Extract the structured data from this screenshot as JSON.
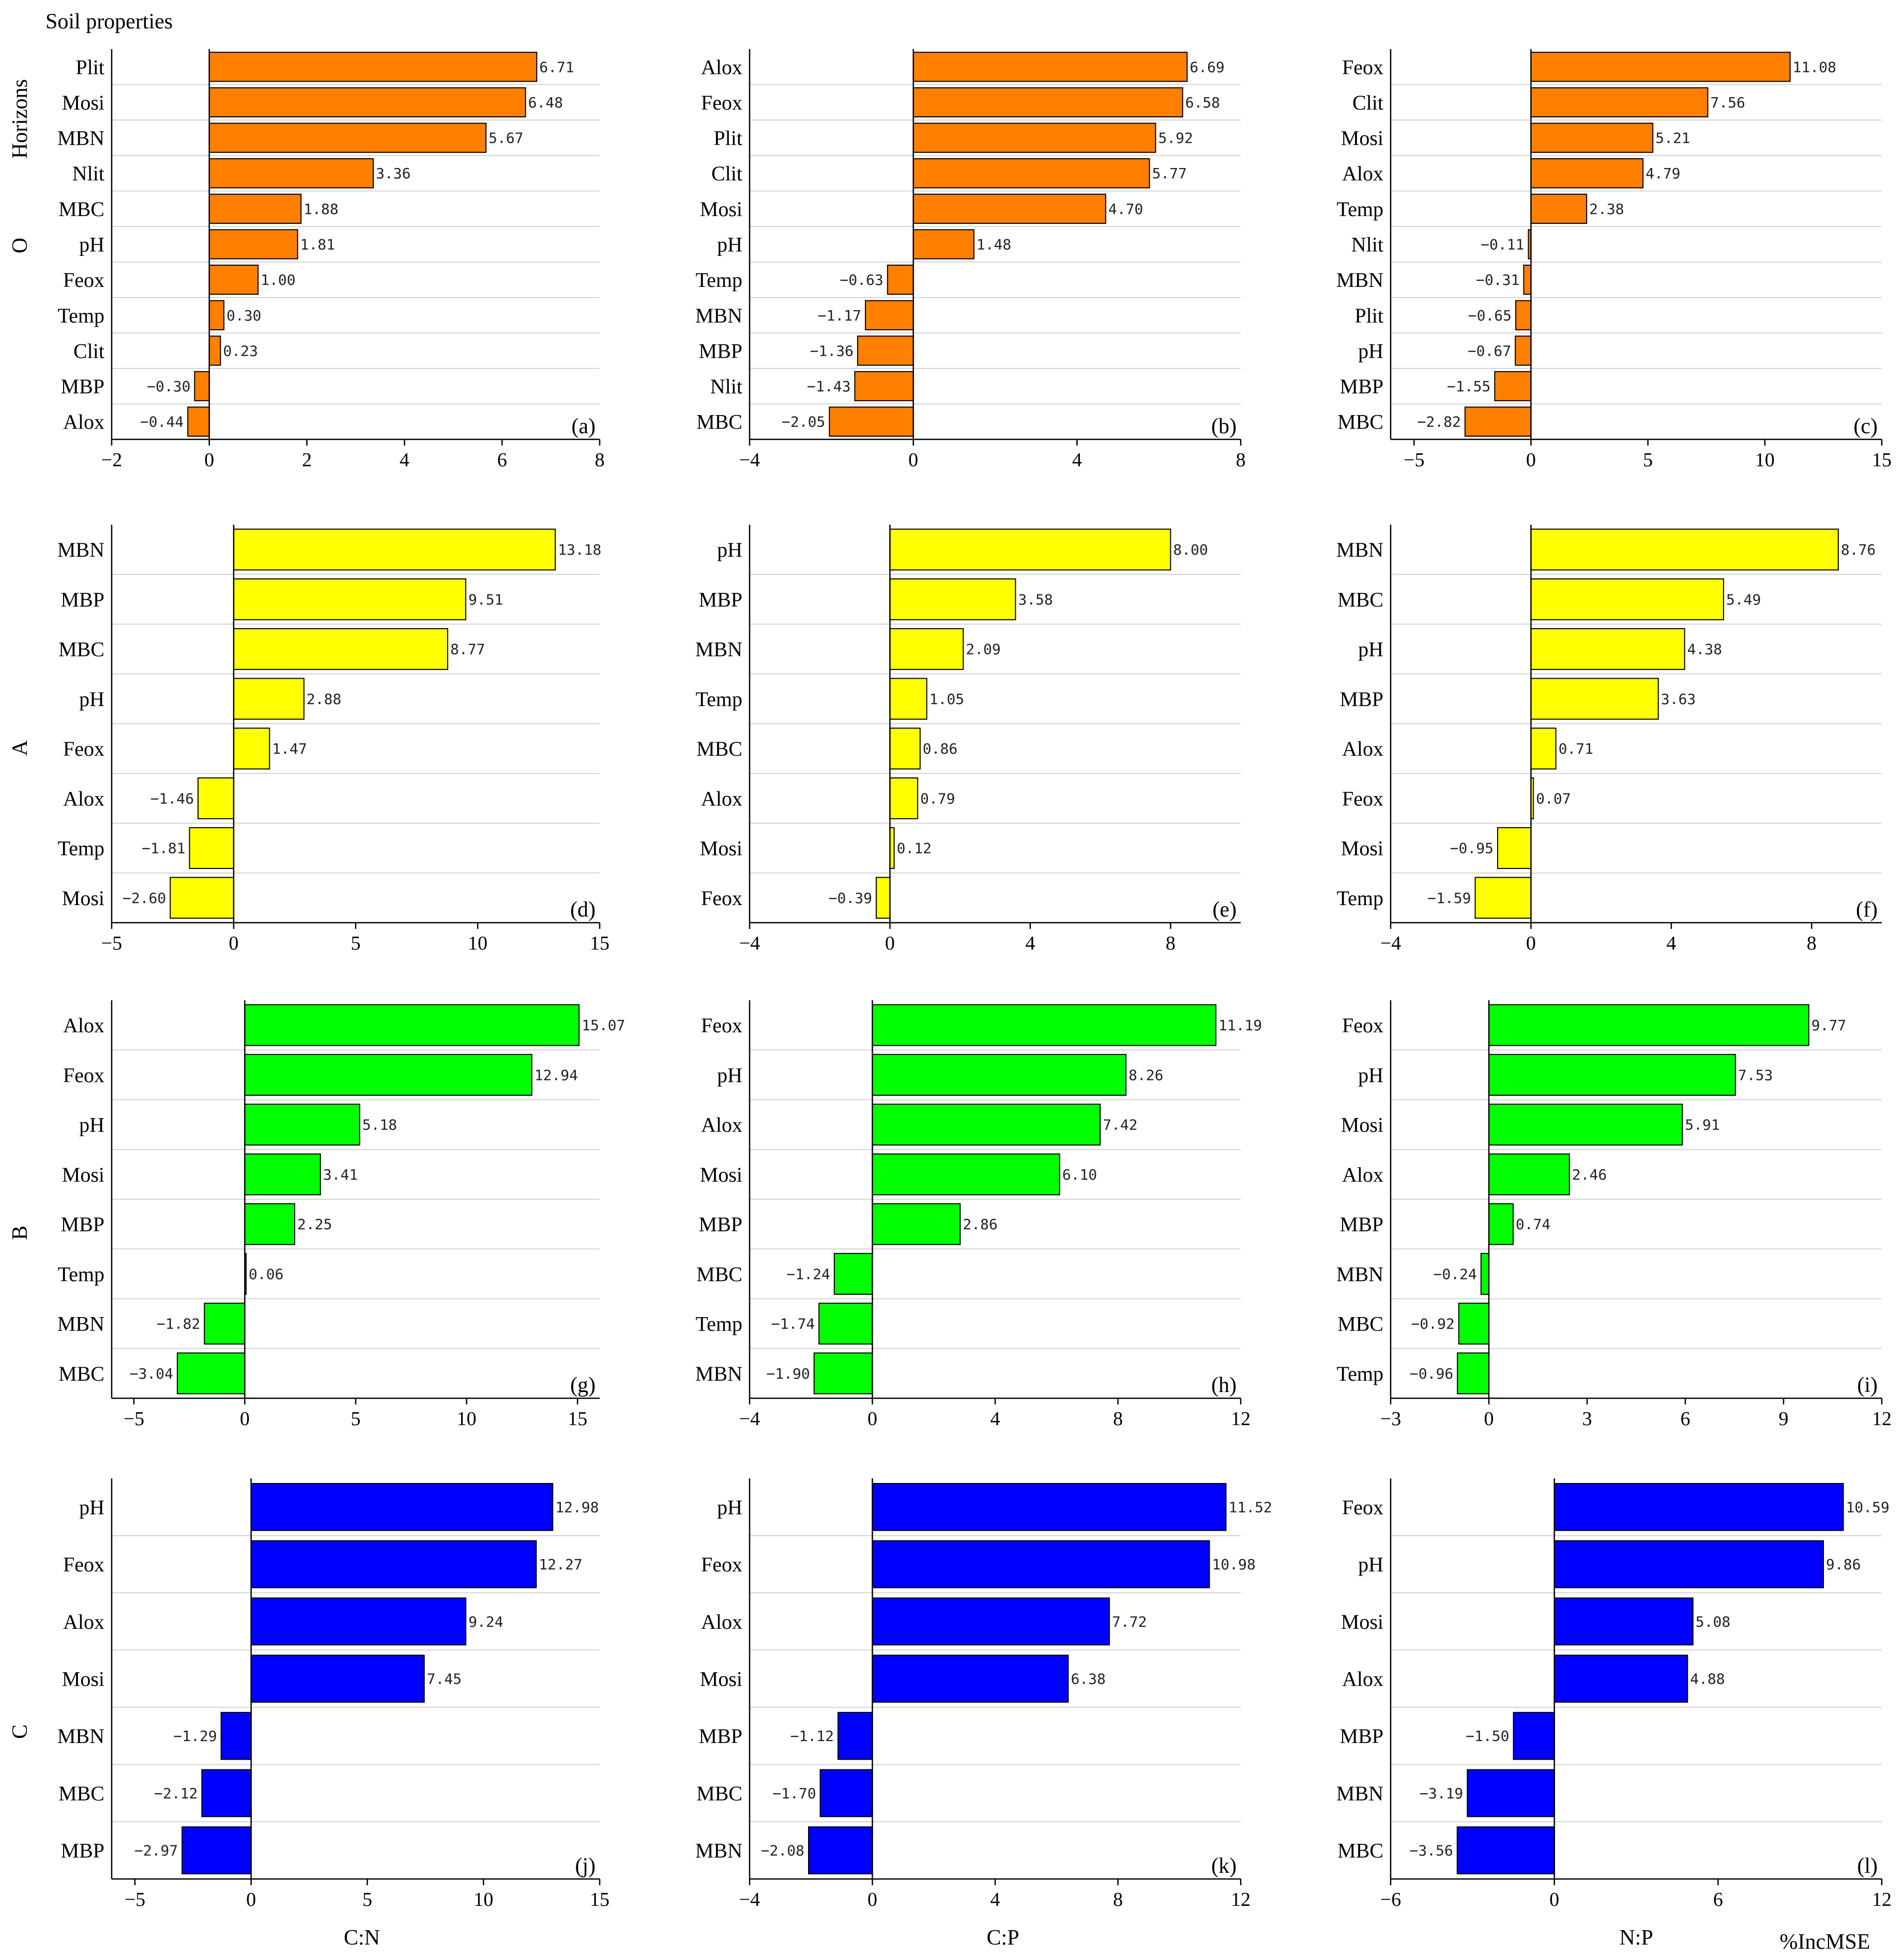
{
  "figure": {
    "title": "Soil properties",
    "y_axis_title": "Horizons",
    "corner_label": "%IncMSE",
    "row_labels": [
      "O",
      "A",
      "B",
      "C"
    ],
    "column_labels": [
      "C:N",
      "C:P",
      "N:P"
    ],
    "colors": {
      "O": "#ff7f00",
      "A": "#ffff00",
      "B": "#00ff00",
      "C": "#0000ff"
    }
  },
  "chart_data": [
    {
      "type": "bar",
      "panel": "(a)",
      "horizon": "O",
      "ratio": "C:N",
      "xlim": [
        -2,
        8
      ],
      "xticks": [
        -2,
        0,
        2,
        4,
        6,
        8
      ],
      "categories": [
        "Plit",
        "Mosi",
        "MBN",
        "Nlit",
        "MBC",
        "pH",
        "Feox",
        "Temp",
        "Clit",
        "MBP",
        "Alox"
      ],
      "values": [
        6.71,
        6.48,
        5.67,
        3.36,
        1.88,
        1.81,
        1.0,
        0.3,
        0.23,
        -0.3,
        -0.44
      ]
    },
    {
      "type": "bar",
      "panel": "(b)",
      "horizon": "O",
      "ratio": "C:P",
      "xlim": [
        -4,
        8
      ],
      "xticks": [
        -4,
        0,
        4,
        8
      ],
      "categories": [
        "Alox",
        "Feox",
        "Plit",
        "Clit",
        "Mosi",
        "pH",
        "Temp",
        "MBN",
        "MBP",
        "Nlit",
        "MBC"
      ],
      "values": [
        6.69,
        6.58,
        5.92,
        5.77,
        4.7,
        1.48,
        -0.63,
        -1.17,
        -1.36,
        -1.43,
        -2.05
      ]
    },
    {
      "type": "bar",
      "panel": "(c)",
      "horizon": "O",
      "ratio": "N:P",
      "xlim": [
        -6,
        15
      ],
      "xticks": [
        -5,
        0,
        5,
        10,
        15
      ],
      "categories": [
        "Feox",
        "Clit",
        "Mosi",
        "Alox",
        "Temp",
        "Nlit",
        "MBN",
        "Plit",
        "pH",
        "MBP",
        "MBC"
      ],
      "values": [
        11.08,
        7.56,
        5.21,
        4.79,
        2.38,
        -0.11,
        -0.31,
        -0.65,
        -0.67,
        -1.55,
        -2.82
      ]
    },
    {
      "type": "bar",
      "panel": "(d)",
      "horizon": "A",
      "ratio": "C:N",
      "xlim": [
        -5,
        15
      ],
      "xticks": [
        -5,
        0,
        5,
        10,
        15
      ],
      "categories": [
        "MBN",
        "MBP",
        "MBC",
        "pH",
        "Feox",
        "Alox",
        "Temp",
        "Mosi"
      ],
      "values": [
        13.18,
        9.51,
        8.77,
        2.88,
        1.47,
        -1.46,
        -1.81,
        -2.6
      ]
    },
    {
      "type": "bar",
      "panel": "(e)",
      "horizon": "A",
      "ratio": "C:P",
      "xlim": [
        -4,
        10
      ],
      "xticks": [
        -4,
        0,
        4,
        8
      ],
      "categories": [
        "pH",
        "MBP",
        "MBN",
        "Temp",
        "MBC",
        "Alox",
        "Mosi",
        "Feox"
      ],
      "values": [
        8.0,
        3.58,
        2.09,
        1.05,
        0.86,
        0.79,
        0.12,
        -0.39
      ]
    },
    {
      "type": "bar",
      "panel": "(f)",
      "horizon": "A",
      "ratio": "N:P",
      "xlim": [
        -4,
        10
      ],
      "xticks": [
        -4,
        0,
        4,
        8
      ],
      "categories": [
        "MBN",
        "MBC",
        "pH",
        "MBP",
        "Alox",
        "Feox",
        "Mosi",
        "Temp"
      ],
      "values": [
        8.76,
        5.49,
        4.38,
        3.63,
        0.71,
        0.07,
        -0.95,
        -1.59
      ]
    },
    {
      "type": "bar",
      "panel": "(g)",
      "horizon": "B",
      "ratio": "C:N",
      "xlim": [
        -6,
        16
      ],
      "xticks": [
        -5,
        0,
        5,
        10,
        15
      ],
      "categories": [
        "Alox",
        "Feox",
        "pH",
        "Mosi",
        "MBP",
        "Temp",
        "MBN",
        "MBC"
      ],
      "values": [
        15.07,
        12.94,
        5.18,
        3.41,
        2.25,
        0.06,
        -1.82,
        -3.04
      ]
    },
    {
      "type": "bar",
      "panel": "(h)",
      "horizon": "B",
      "ratio": "C:P",
      "xlim": [
        -4,
        12
      ],
      "xticks": [
        -4,
        0,
        4,
        8,
        12
      ],
      "categories": [
        "Feox",
        "pH",
        "Alox",
        "Mosi",
        "MBP",
        "MBC",
        "Temp",
        "MBN"
      ],
      "values": [
        11.19,
        8.26,
        7.42,
        6.1,
        2.86,
        -1.24,
        -1.74,
        -1.9
      ]
    },
    {
      "type": "bar",
      "panel": "(i)",
      "horizon": "B",
      "ratio": "N:P",
      "xlim": [
        -3,
        12
      ],
      "xticks": [
        -3,
        0,
        3,
        6,
        9,
        12
      ],
      "categories": [
        "Feox",
        "pH",
        "Mosi",
        "Alox",
        "MBP",
        "MBN",
        "MBC",
        "Temp"
      ],
      "values": [
        9.77,
        7.53,
        5.91,
        2.46,
        0.74,
        -0.24,
        -0.92,
        -0.96
      ]
    },
    {
      "type": "bar",
      "panel": "(j)",
      "horizon": "C",
      "ratio": "C:N",
      "xlim": [
        -6,
        15
      ],
      "xticks": [
        -5,
        0,
        5,
        10,
        15
      ],
      "categories": [
        "pH",
        "Feox",
        "Alox",
        "Mosi",
        "MBN",
        "MBC",
        "MBP"
      ],
      "values": [
        12.98,
        12.27,
        9.24,
        7.45,
        -1.29,
        -2.12,
        -2.97
      ]
    },
    {
      "type": "bar",
      "panel": "(k)",
      "horizon": "C",
      "ratio": "C:P",
      "xlim": [
        -4,
        12
      ],
      "xticks": [
        -4,
        0,
        4,
        8,
        12
      ],
      "categories": [
        "pH",
        "Feox",
        "Alox",
        "Mosi",
        "MBP",
        "MBC",
        "MBN"
      ],
      "values": [
        11.52,
        10.98,
        7.72,
        6.38,
        -1.12,
        -1.7,
        -2.08
      ]
    },
    {
      "type": "bar",
      "panel": "(l)",
      "horizon": "C",
      "ratio": "N:P",
      "xlim": [
        -6,
        12
      ],
      "xticks": [
        -6,
        0,
        6,
        12
      ],
      "categories": [
        "Feox",
        "pH",
        "Mosi",
        "Alox",
        "MBP",
        "MBN",
        "MBC"
      ],
      "values": [
        10.59,
        9.86,
        5.08,
        4.88,
        -1.5,
        -3.19,
        -3.56
      ]
    }
  ]
}
